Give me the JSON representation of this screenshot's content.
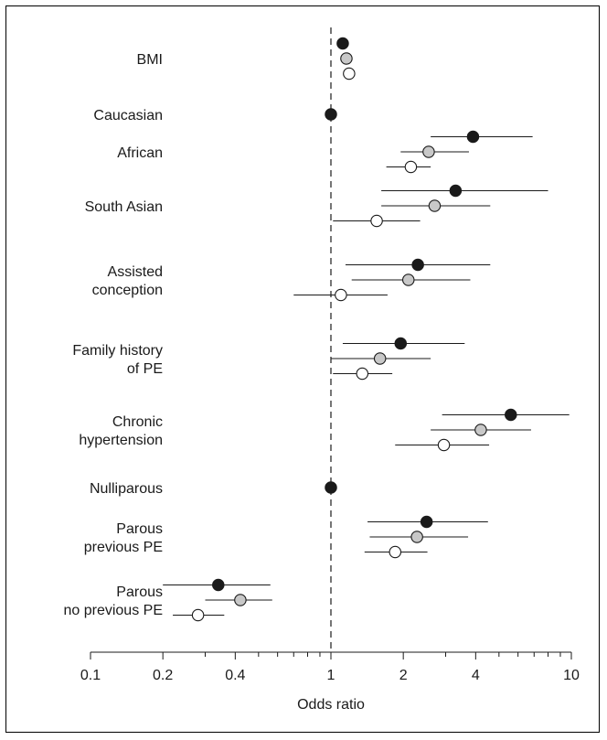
{
  "chart_data": {
    "type": "forest",
    "xscale": "log",
    "xlim": [
      0.1,
      10
    ],
    "xlabel": "Odds ratio",
    "reference_line": 1,
    "xticks_major": [
      0.1,
      0.2,
      0.4,
      1,
      2,
      4,
      10
    ],
    "xtick_labels": [
      "0.1",
      "0.2",
      "0.4",
      "1",
      "2",
      "4",
      "10"
    ],
    "xticks_minor": [
      0.3,
      0.5,
      0.6,
      0.7,
      0.8,
      0.9,
      3,
      5,
      6,
      7,
      8,
      9
    ],
    "marker_fills": [
      "#1a1a1a",
      "#c8c8c8",
      "#ffffff"
    ],
    "rows": [
      {
        "label": [
          "BMI"
        ],
        "estimates": [
          {
            "or": 1.12,
            "lo": null,
            "hi": null
          },
          {
            "or": 1.16,
            "lo": null,
            "hi": null
          },
          {
            "or": 1.19,
            "lo": null,
            "hi": null
          }
        ]
      },
      {
        "label": [
          "Caucasian"
        ],
        "estimates": [
          {
            "or": 1.0,
            "lo": null,
            "hi": null
          }
        ]
      },
      {
        "label": [
          "African"
        ],
        "estimates": [
          {
            "or": 3.9,
            "lo": 2.6,
            "hi": 6.9
          },
          {
            "or": 2.55,
            "lo": 1.95,
            "hi": 3.75
          },
          {
            "or": 2.15,
            "lo": 1.7,
            "hi": 2.6
          }
        ]
      },
      {
        "label": [
          "South Asian"
        ],
        "estimates": [
          {
            "or": 3.3,
            "lo": 1.62,
            "hi": 8.0
          },
          {
            "or": 2.7,
            "lo": 1.62,
            "hi": 4.6
          },
          {
            "or": 1.55,
            "lo": 1.02,
            "hi": 2.35
          }
        ]
      },
      {
        "label": [
          "Assisted",
          "conception"
        ],
        "estimates": [
          {
            "or": 2.3,
            "lo": 1.15,
            "hi": 4.6
          },
          {
            "or": 2.1,
            "lo": 1.22,
            "hi": 3.8
          },
          {
            "or": 1.1,
            "lo": 0.7,
            "hi": 1.72
          }
        ]
      },
      {
        "label": [
          "Family history",
          "of PE"
        ],
        "estimates": [
          {
            "or": 1.95,
            "lo": 1.12,
            "hi": 3.6
          },
          {
            "or": 1.6,
            "lo": 1.0,
            "hi": 2.6
          },
          {
            "or": 1.35,
            "lo": 1.02,
            "hi": 1.8
          }
        ]
      },
      {
        "label": [
          "Chronic",
          "hypertension"
        ],
        "estimates": [
          {
            "or": 5.6,
            "lo": 2.9,
            "hi": 9.8
          },
          {
            "or": 4.2,
            "lo": 2.6,
            "hi": 6.8
          },
          {
            "or": 2.95,
            "lo": 1.85,
            "hi": 4.55
          }
        ]
      },
      {
        "label": [
          "Nulliparous"
        ],
        "estimates": [
          {
            "or": 1.0,
            "lo": null,
            "hi": null
          }
        ]
      },
      {
        "label": [
          "Parous",
          "previous PE"
        ],
        "estimates": [
          {
            "or": 2.5,
            "lo": 1.42,
            "hi": 4.5
          },
          {
            "or": 2.28,
            "lo": 1.45,
            "hi": 3.72
          },
          {
            "or": 1.85,
            "lo": 1.38,
            "hi": 2.52
          }
        ]
      },
      {
        "label": [
          "Parous",
          "no previous PE"
        ],
        "estimates": [
          {
            "or": 0.34,
            "lo": 0.2,
            "hi": 0.56
          },
          {
            "or": 0.42,
            "lo": 0.3,
            "hi": 0.57
          },
          {
            "or": 0.28,
            "lo": 0.22,
            "hi": 0.36
          }
        ]
      }
    ]
  }
}
